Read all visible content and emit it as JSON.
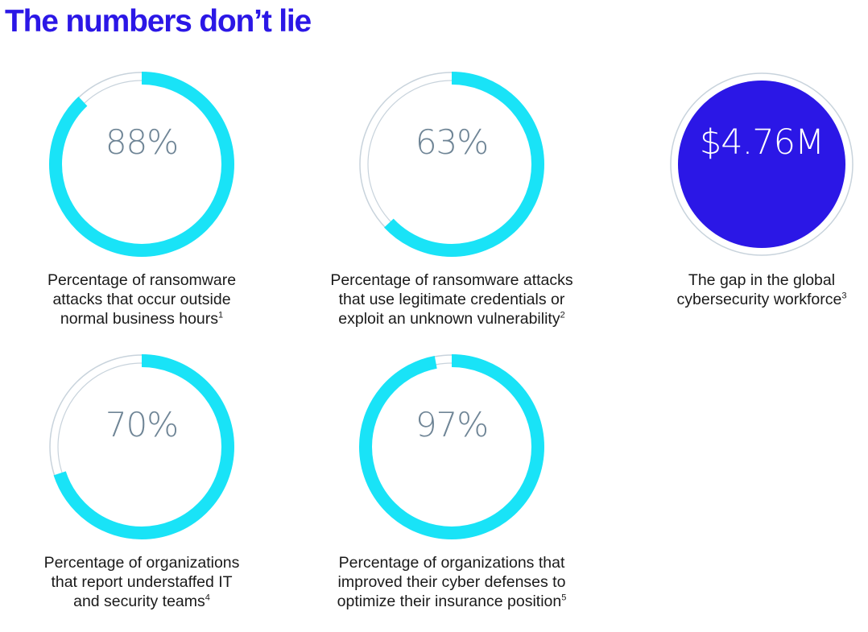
{
  "title": "The numbers don’t lie",
  "colors": {
    "title": "#2b17e6",
    "ring_fill": "#19e3f7",
    "ring_track": "#c8d3dc",
    "value_text": "#6f8596",
    "solid_circle": "#2b17e6",
    "solid_text": "#ffffff"
  },
  "stats": [
    {
      "value": "88%",
      "percent": 88,
      "caption_lines": [
        "Percentage of ransomware",
        "attacks that occur outside",
        "normal business hours"
      ],
      "footnote": "1"
    },
    {
      "value": "63%",
      "percent": 63,
      "caption_lines": [
        "Percentage of ransomware attacks",
        "that use legitimate credentials or",
        "exploit an unknown vulnerability"
      ],
      "footnote": "2"
    },
    {
      "value": "$4.76M",
      "percent": null,
      "caption_lines": [
        "The gap in the global",
        "cybersecurity workforce"
      ],
      "footnote": "3"
    },
    {
      "value": "70%",
      "percent": 70,
      "caption_lines": [
        "Percentage of organizations",
        "that report understaffed IT",
        "and security teams"
      ],
      "footnote": "4"
    },
    {
      "value": "97%",
      "percent": 97,
      "caption_lines": [
        "Percentage of organizations that",
        "improved their cyber defenses to",
        "optimize their insurance position"
      ],
      "footnote": "5"
    }
  ]
}
